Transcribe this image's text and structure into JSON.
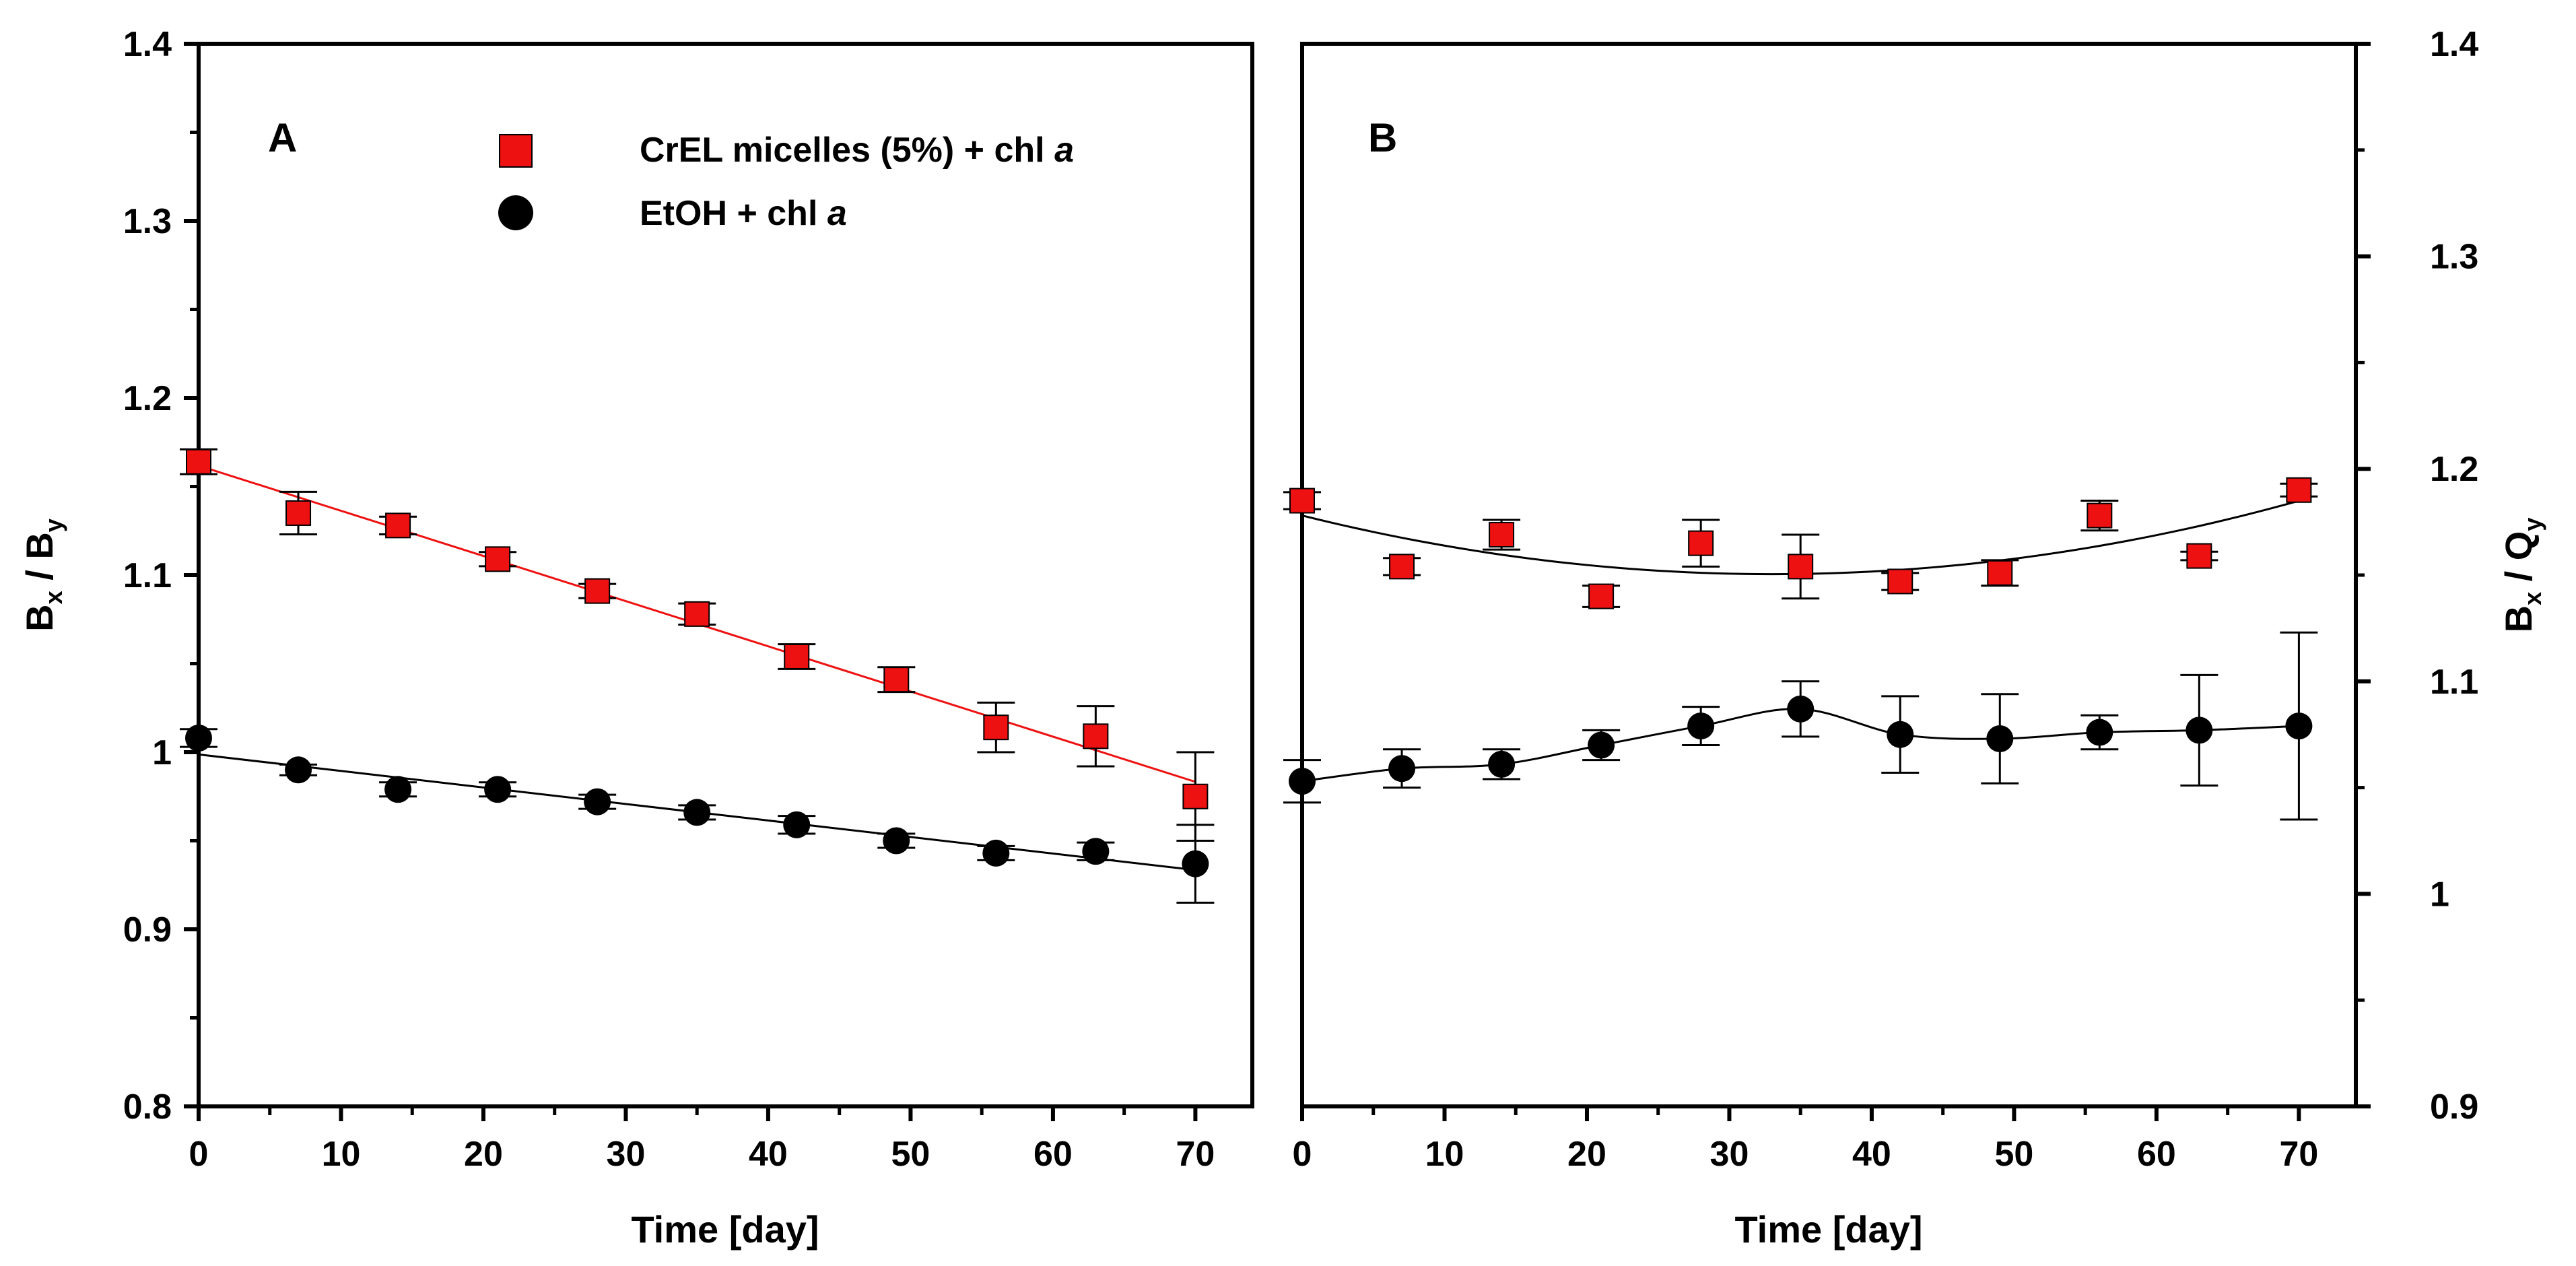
{
  "chart_data": [
    {
      "panel": "A",
      "type": "scatter",
      "panel_label": "A",
      "xlabel": "Time [day]",
      "ylabel_main": "B",
      "ylabel_sub1": "x",
      "ylabel_mid": " / B",
      "ylabel_sub2": "y",
      "xlim": [
        0,
        74
      ],
      "ylim": [
        0.8,
        1.4
      ],
      "x_ticks": [
        0,
        10,
        20,
        30,
        40,
        50,
        60,
        70
      ],
      "y_ticks": [
        0.8,
        0.9,
        1,
        1.1,
        1.2,
        1.3,
        1.4
      ],
      "x_tick_labels": [
        "0",
        "10",
        "20",
        "30",
        "40",
        "50",
        "60",
        "70"
      ],
      "y_tick_labels": [
        "0.8",
        "0.9",
        "1",
        "1.1",
        "1.2",
        "1.3",
        "1.4"
      ],
      "series": [
        {
          "name": "CrEL micelles (5%) + chl a",
          "color": "#ee1111",
          "marker": "square",
          "fit": "linear",
          "fit_color": "#ee1111",
          "x": [
            0,
            7,
            14,
            21,
            28,
            35,
            42,
            49,
            56,
            63,
            70
          ],
          "y": [
            1.164,
            1.135,
            1.128,
            1.109,
            1.091,
            1.078,
            1.054,
            1.041,
            1.014,
            1.009,
            0.975
          ],
          "err": [
            0.007,
            0.012,
            0.005,
            0.004,
            0.004,
            0.006,
            0.007,
            0.007,
            0.014,
            0.017,
            0.025
          ]
        },
        {
          "name": "EtOH + chl a",
          "color": "#000000",
          "marker": "circle",
          "fit": "linear",
          "fit_color": "#000000",
          "x": [
            0,
            7,
            14,
            21,
            28,
            35,
            42,
            49,
            56,
            63,
            70
          ],
          "y": [
            1.008,
            0.99,
            0.979,
            0.979,
            0.972,
            0.966,
            0.959,
            0.95,
            0.943,
            0.944,
            0.937
          ],
          "err": [
            0.005,
            0.003,
            0.004,
            0.004,
            0.004,
            0.004,
            0.005,
            0.004,
            0.004,
            0.005,
            0.022
          ]
        }
      ],
      "legend": [
        {
          "label": "CrEL micelles (5%) + chl ",
          "label_italic": "a",
          "marker": "square",
          "color": "#ee1111"
        },
        {
          "label": "EtOH + chl ",
          "label_italic": "a",
          "marker": "circle",
          "color": "#000000"
        }
      ]
    },
    {
      "panel": "B",
      "type": "scatter",
      "panel_label": "B",
      "xlabel": "Time [day]",
      "ylabel_main": "B",
      "ylabel_sub1": "x",
      "ylabel_mid": " / Q",
      "ylabel_sub2": "y",
      "xlim": [
        0,
        74
      ],
      "ylim": [
        0.9,
        1.4
      ],
      "x_ticks": [
        0,
        10,
        20,
        30,
        40,
        50,
        60,
        70
      ],
      "y_ticks": [
        0.9,
        1,
        1.1,
        1.2,
        1.3,
        1.4
      ],
      "x_tick_labels": [
        "0",
        "10",
        "20",
        "30",
        "40",
        "50",
        "60",
        "70"
      ],
      "y_tick_labels": [
        "0.9",
        "1",
        "1.1",
        "1.2",
        "1.3",
        "1.4"
      ],
      "series": [
        {
          "name": "CrEL micelles (5%) + chl a",
          "color": "#ee1111",
          "marker": "square",
          "fit": "quadratic",
          "fit_color": "#000000",
          "x": [
            0,
            7,
            14,
            21,
            28,
            35,
            42,
            49,
            56,
            63,
            70
          ],
          "y": [
            1.185,
            1.154,
            1.169,
            1.14,
            1.165,
            1.154,
            1.147,
            1.151,
            1.178,
            1.159,
            1.19
          ],
          "err": [
            0.004,
            0.004,
            0.007,
            0.005,
            0.011,
            0.015,
            0.004,
            0.006,
            0.007,
            0.002,
            0.003
          ]
        },
        {
          "name": "EtOH + chl a",
          "color": "#000000",
          "marker": "circle",
          "fit": "spline",
          "fit_color": "#000000",
          "x": [
            0,
            7,
            14,
            21,
            28,
            35,
            42,
            49,
            56,
            63,
            70
          ],
          "y": [
            1.053,
            1.059,
            1.061,
            1.07,
            1.079,
            1.087,
            1.075,
            1.073,
            1.076,
            1.077,
            1.079
          ],
          "err": [
            0.01,
            0.009,
            0.007,
            0.007,
            0.009,
            0.013,
            0.018,
            0.021,
            0.008,
            0.026,
            0.044
          ]
        }
      ]
    }
  ]
}
